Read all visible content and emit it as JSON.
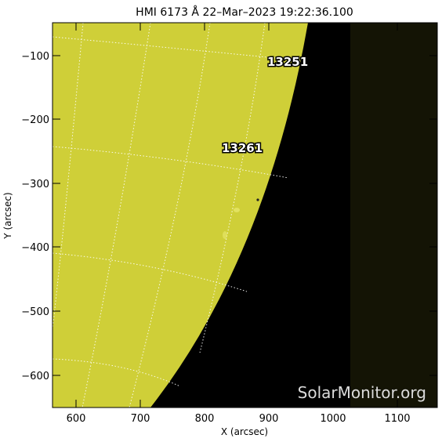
{
  "title": "HMI 6173 Å 22–Mar–2023 19:22:36.100",
  "xlabel": "X (arcsec)",
  "ylabel": "Y (arcsec)",
  "watermark": "SolarMonitor.org",
  "axes": {
    "x_ticks": [
      "600",
      "700",
      "800",
      "900",
      "1000",
      "1100"
    ],
    "y_ticks": [
      "−100",
      "−200",
      "−300",
      "−400",
      "−500",
      "−600"
    ]
  },
  "regions": [
    {
      "label": "13251"
    },
    {
      "label": "13261"
    }
  ],
  "colors": {
    "disk": "#cfcf38",
    "space": "#000000",
    "dark_band": "#141405",
    "grid": "#ffffff",
    "label_fill": "#ffffff",
    "label_stroke": "#000000"
  }
}
